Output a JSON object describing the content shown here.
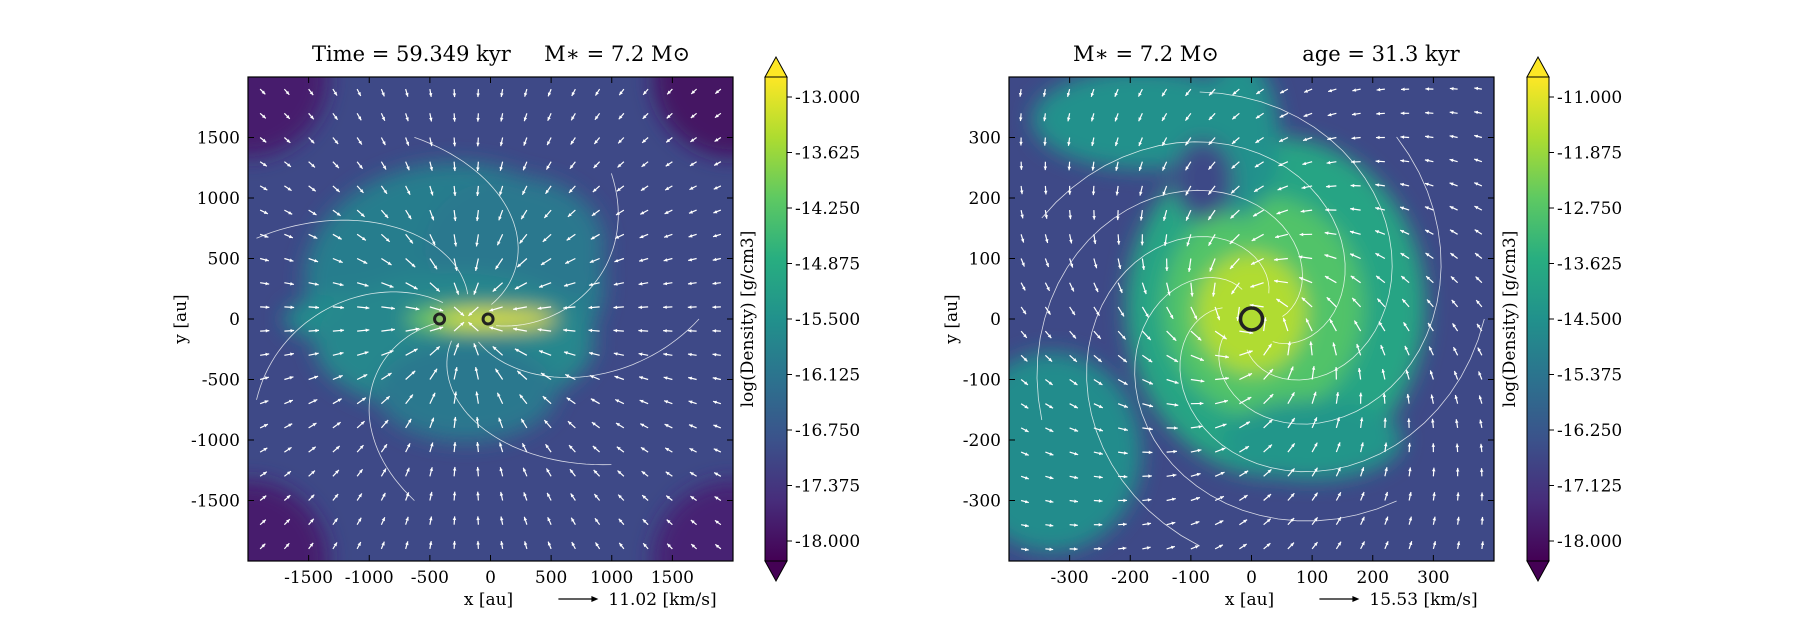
{
  "chart_data": [
    {
      "type": "heatmap",
      "title": "Time = 59.349 kyr    M ∗ = 7.2 M ⊙",
      "title_parts": {
        "left": "Time = 59.349 kyr",
        "right": "M∗ = 7.2 M⊙"
      },
      "xlabel": "x [au]",
      "ylabel": "y [au]",
      "xlim": [
        -2000,
        2000
      ],
      "ylim": [
        -2000,
        2000
      ],
      "xticks": [
        -1500,
        -1000,
        -500,
        0,
        500,
        1000,
        1500
      ],
      "yticks": [
        -1500,
        -1000,
        -500,
        0,
        500,
        1000,
        1500
      ],
      "colorbar": {
        "label": "log(Density) [g/cm3]",
        "min": -18.0,
        "max": -13.0,
        "ticks": [
          "-13.000",
          "-13.625",
          "-14.250",
          "-14.875",
          "-15.500",
          "-16.125",
          "-16.750",
          "-17.375",
          "-18.000"
        ],
        "extend": "both",
        "colormap": "viridis"
      },
      "velocity_key": "11.02 [km/s]",
      "sinks": [
        {
          "x": -420,
          "y": 0
        },
        {
          "x": -20,
          "y": 0
        }
      ],
      "features": "filamentary disk along x-axis, outflow cavity"
    },
    {
      "type": "heatmap",
      "title": "M∗ = 7.2 M⊙        age = 31.3 kyr",
      "title_parts": {
        "left": "M∗ = 7.2 M⊙",
        "right": "age = 31.3 kyr"
      },
      "xlabel": "x [au]",
      "ylabel": "y [au]",
      "xlim": [
        -400,
        400
      ],
      "ylim": [
        -400,
        400
      ],
      "xticks": [
        -300,
        -200,
        -100,
        0,
        100,
        200,
        300
      ],
      "yticks": [
        -300,
        -200,
        -100,
        0,
        100,
        200,
        300
      ],
      "colorbar": {
        "label": "log(Density) [g/cm3]",
        "min": -18.0,
        "max": -11.0,
        "ticks": [
          "-11.000",
          "-11.875",
          "-12.750",
          "-13.625",
          "-14.500",
          "-15.375",
          "-16.250",
          "-17.125",
          "-18.000"
        ],
        "extend": "both",
        "colormap": "viridis"
      },
      "velocity_key": "15.53 [km/s]",
      "sinks": [
        {
          "x": 0,
          "y": 0
        }
      ],
      "features": "spiral disk centered on sink"
    }
  ],
  "colors": {
    "viridis": [
      "#440154",
      "#472d7b",
      "#3b528b",
      "#2c728e",
      "#21918c",
      "#28ae80",
      "#5ec962",
      "#addc30",
      "#fde725"
    ],
    "vectors": "#ffffff",
    "sink": "#222222"
  }
}
